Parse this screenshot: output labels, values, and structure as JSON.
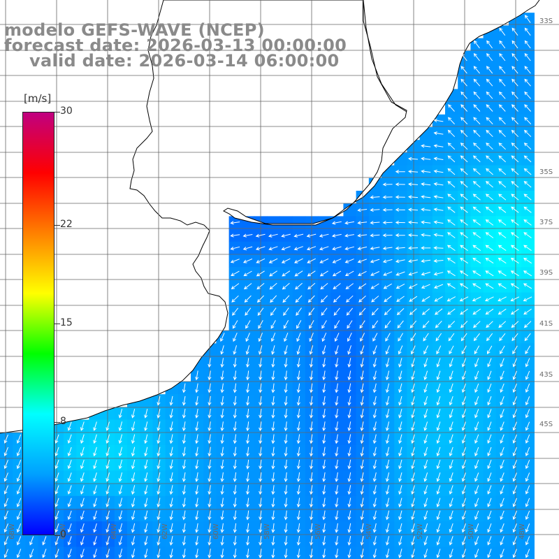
{
  "title": {
    "line1": "modelo GEFS-WAVE (NCEP)",
    "line2": "forecast date: 2026-03-13 00:00:00",
    "line3": "valid date: 2026-03-14 06:00:00"
  },
  "colorbar": {
    "unit": "[m/s]",
    "min": 0,
    "max": 30,
    "ticks": [
      "30",
      "22",
      "15",
      "8",
      "0"
    ],
    "tick_values": [
      30,
      22,
      15,
      8,
      0
    ],
    "colors": [
      "#0000ff",
      "#00a0ff",
      "#00ffff",
      "#00ff00",
      "#ffff00",
      "#ff8000",
      "#ff0000",
      "#c00080"
    ]
  },
  "map": {
    "variable": "wind speed and direction",
    "land_color": "#ffffff",
    "coastline_color": "#000000",
    "grid_color": "#666666",
    "vector_color": "#ffffff",
    "lon_labels": [
      "68W",
      "66W",
      "64W",
      "62W",
      "60W",
      "58W",
      "56W",
      "54W",
      "52W",
      "50W",
      "48W"
    ],
    "lat_labels": [
      "33S",
      "35S",
      "37S",
      "39S",
      "41S",
      "43S",
      "45S"
    ]
  }
}
